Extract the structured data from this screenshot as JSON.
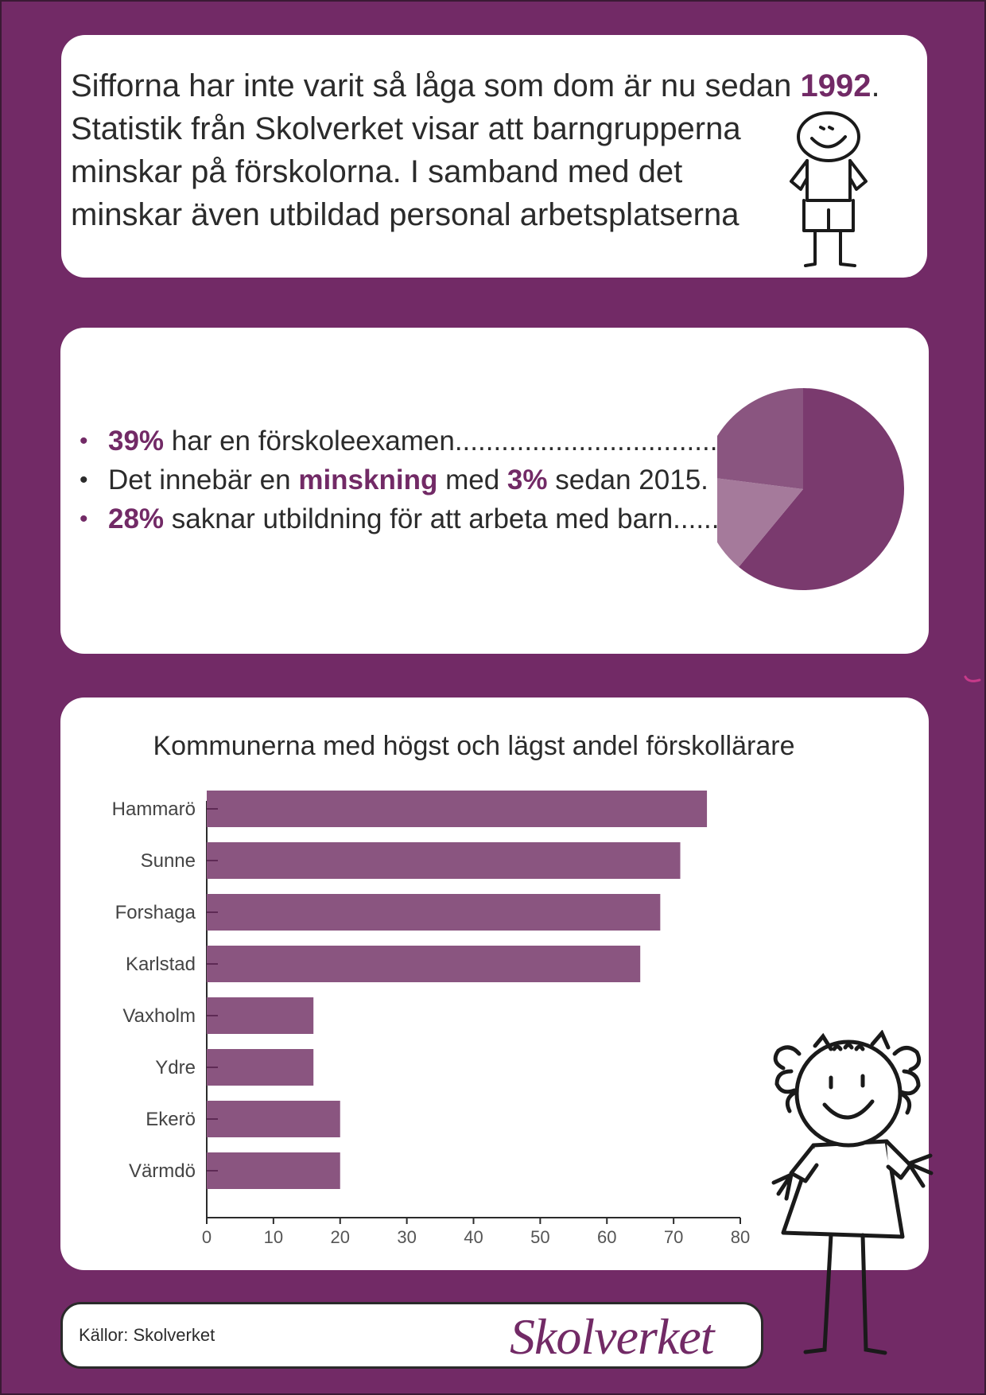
{
  "intro": {
    "line1_text": "Sifforna har inte varit så låga som dom är nu sedan ",
    "line1_year": "1992",
    "line1_end": ".",
    "line2": "Statistik från Skolverket visar att barngrupperna",
    "line3": "minskar på förskolorna. I samband med det",
    "line4": "minskar även utbildad personal arbetsplatserna"
  },
  "stats": {
    "item1_pct": "39%",
    "item1_text": " har en förskoleexamen.......................................................",
    "item2_pre": "Det innebär en ",
    "item2_strong": "minskning",
    "item2_mid": " med ",
    "item2_pct": "3%",
    "item2_post": " sedan 2015.",
    "item3_pct": "28%",
    "item3_text": " saknar utbildning för att arbeta med barn............."
  },
  "pie": {
    "bullet_purple": "#722a66",
    "colors": [
      "#7a3a6e",
      "#a57a9b",
      "#8a5580"
    ]
  },
  "chart_data": [
    {
      "type": "pie",
      "values": [
        61,
        16,
        23
      ],
      "colors": [
        "#7a3a6e",
        "#a57a9b",
        "#8a5580"
      ]
    },
    {
      "type": "bar",
      "orientation": "horizontal",
      "title": "Kommunerna med högst och lägst andel förskollärare",
      "categories": [
        "Hammarö",
        "Sunne",
        "Forshaga",
        "Karlstad",
        "Vaxholm",
        "Ydre",
        "Ekerö",
        "Värmdö"
      ],
      "values": [
        75,
        71,
        68,
        65,
        16,
        16,
        20,
        20
      ],
      "xlim": [
        0,
        80
      ],
      "xticks": [
        "0",
        "10",
        "20",
        "30",
        "40",
        "50",
        "60",
        "70",
        "80"
      ],
      "bar_color": "#8a5580",
      "grid": false
    }
  ],
  "source": {
    "label": "Källor: Skolverket",
    "logo": "Skolverket"
  }
}
